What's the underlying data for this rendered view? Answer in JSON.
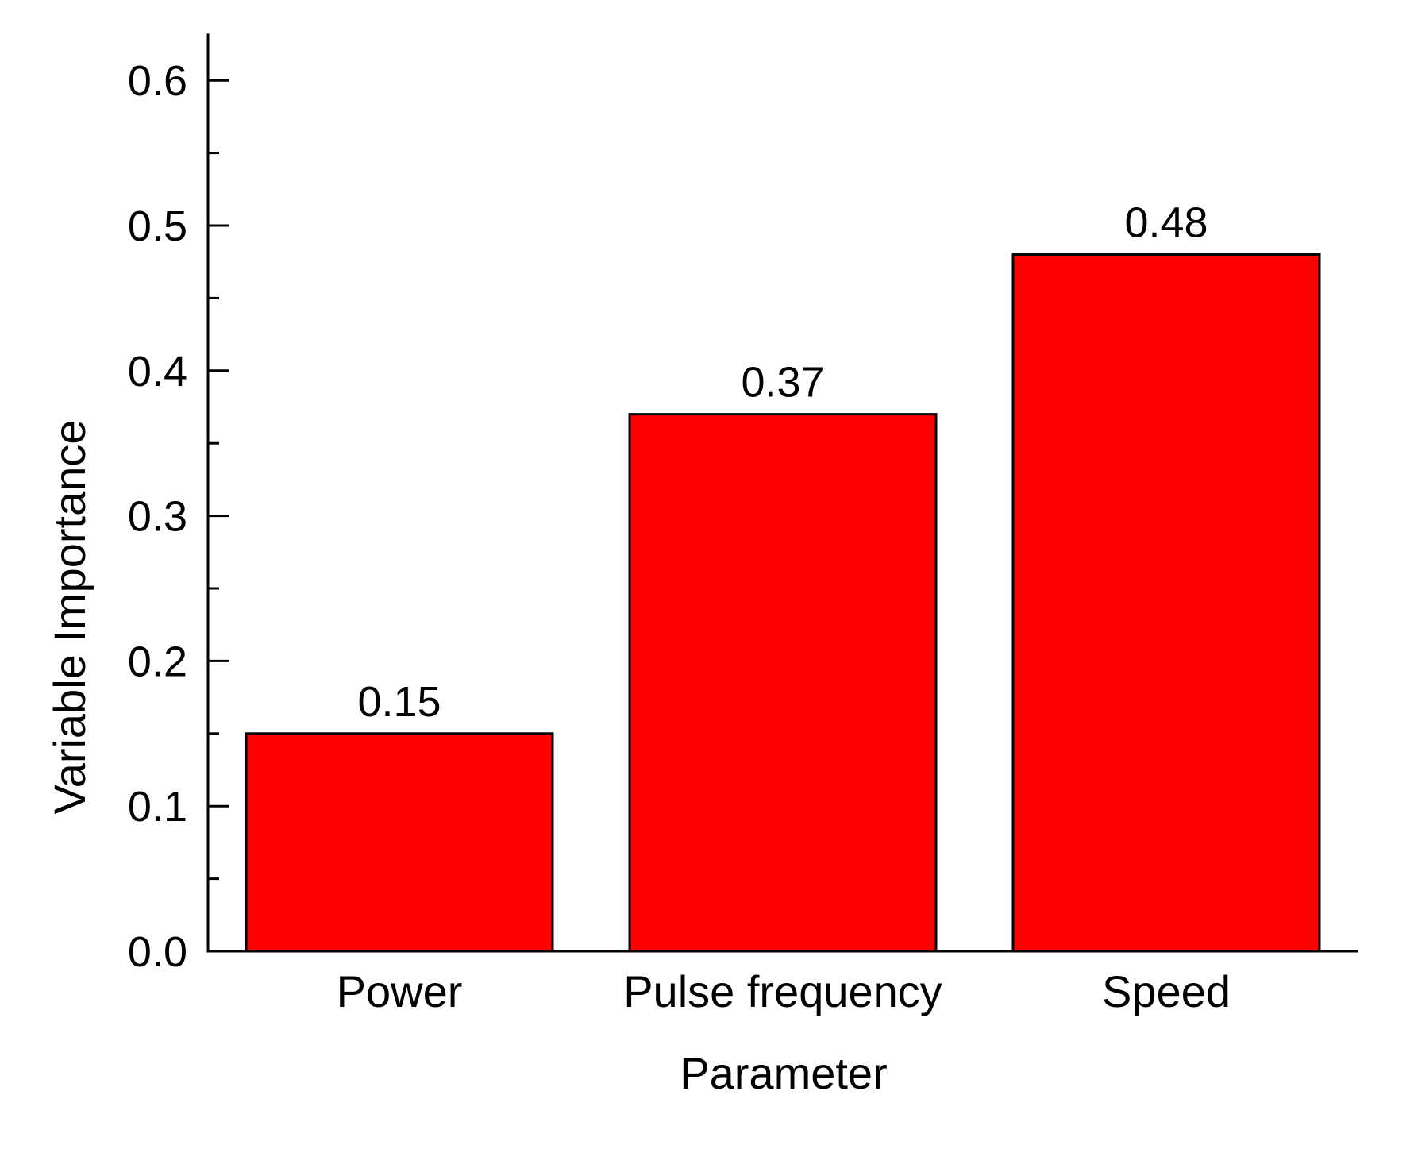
{
  "chart_data": {
    "type": "bar",
    "categories": [
      "Power",
      "Pulse frequency",
      "Speed"
    ],
    "values": [
      0.15,
      0.37,
      0.48
    ],
    "data_labels": [
      "0.15",
      "0.37",
      "0.48"
    ],
    "title": "",
    "xlabel": "Parameter",
    "ylabel": "Variable Importance",
    "ylim": [
      0,
      0.63
    ],
    "yticks": [
      0.0,
      0.1,
      0.2,
      0.3,
      0.4,
      0.5,
      0.6
    ],
    "ytick_labels": [
      "0.0",
      "0.1",
      "0.2",
      "0.3",
      "0.4",
      "0.5",
      "0.6"
    ],
    "yminor_step": 0.05,
    "grid": false,
    "legend": "none",
    "bar_color": "#ff0000",
    "bar_edge_color": "#000000"
  }
}
